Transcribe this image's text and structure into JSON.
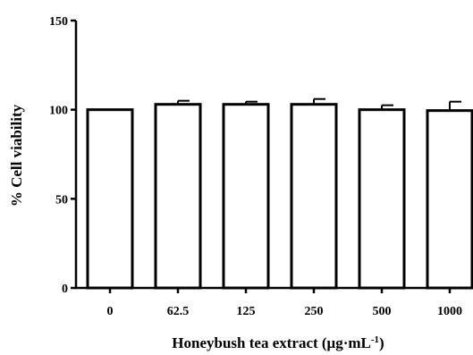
{
  "chart_data": {
    "type": "bar",
    "categories": [
      "0",
      "62.5",
      "125",
      "250",
      "500",
      "1000"
    ],
    "values": [
      100,
      103,
      103,
      103,
      100,
      99.5
    ],
    "errors": [
      0,
      2,
      1.5,
      3,
      2.5,
      5
    ],
    "ylabel": "% Cell viability",
    "xlabel": "Honeybush tea extract (μg·mL",
    "xlabel_sup": "-1",
    "xlabel_tail": ")",
    "ylim": [
      0,
      150
    ],
    "yticks": [
      0,
      50,
      100,
      150
    ],
    "grid": false,
    "legend": "none"
  }
}
